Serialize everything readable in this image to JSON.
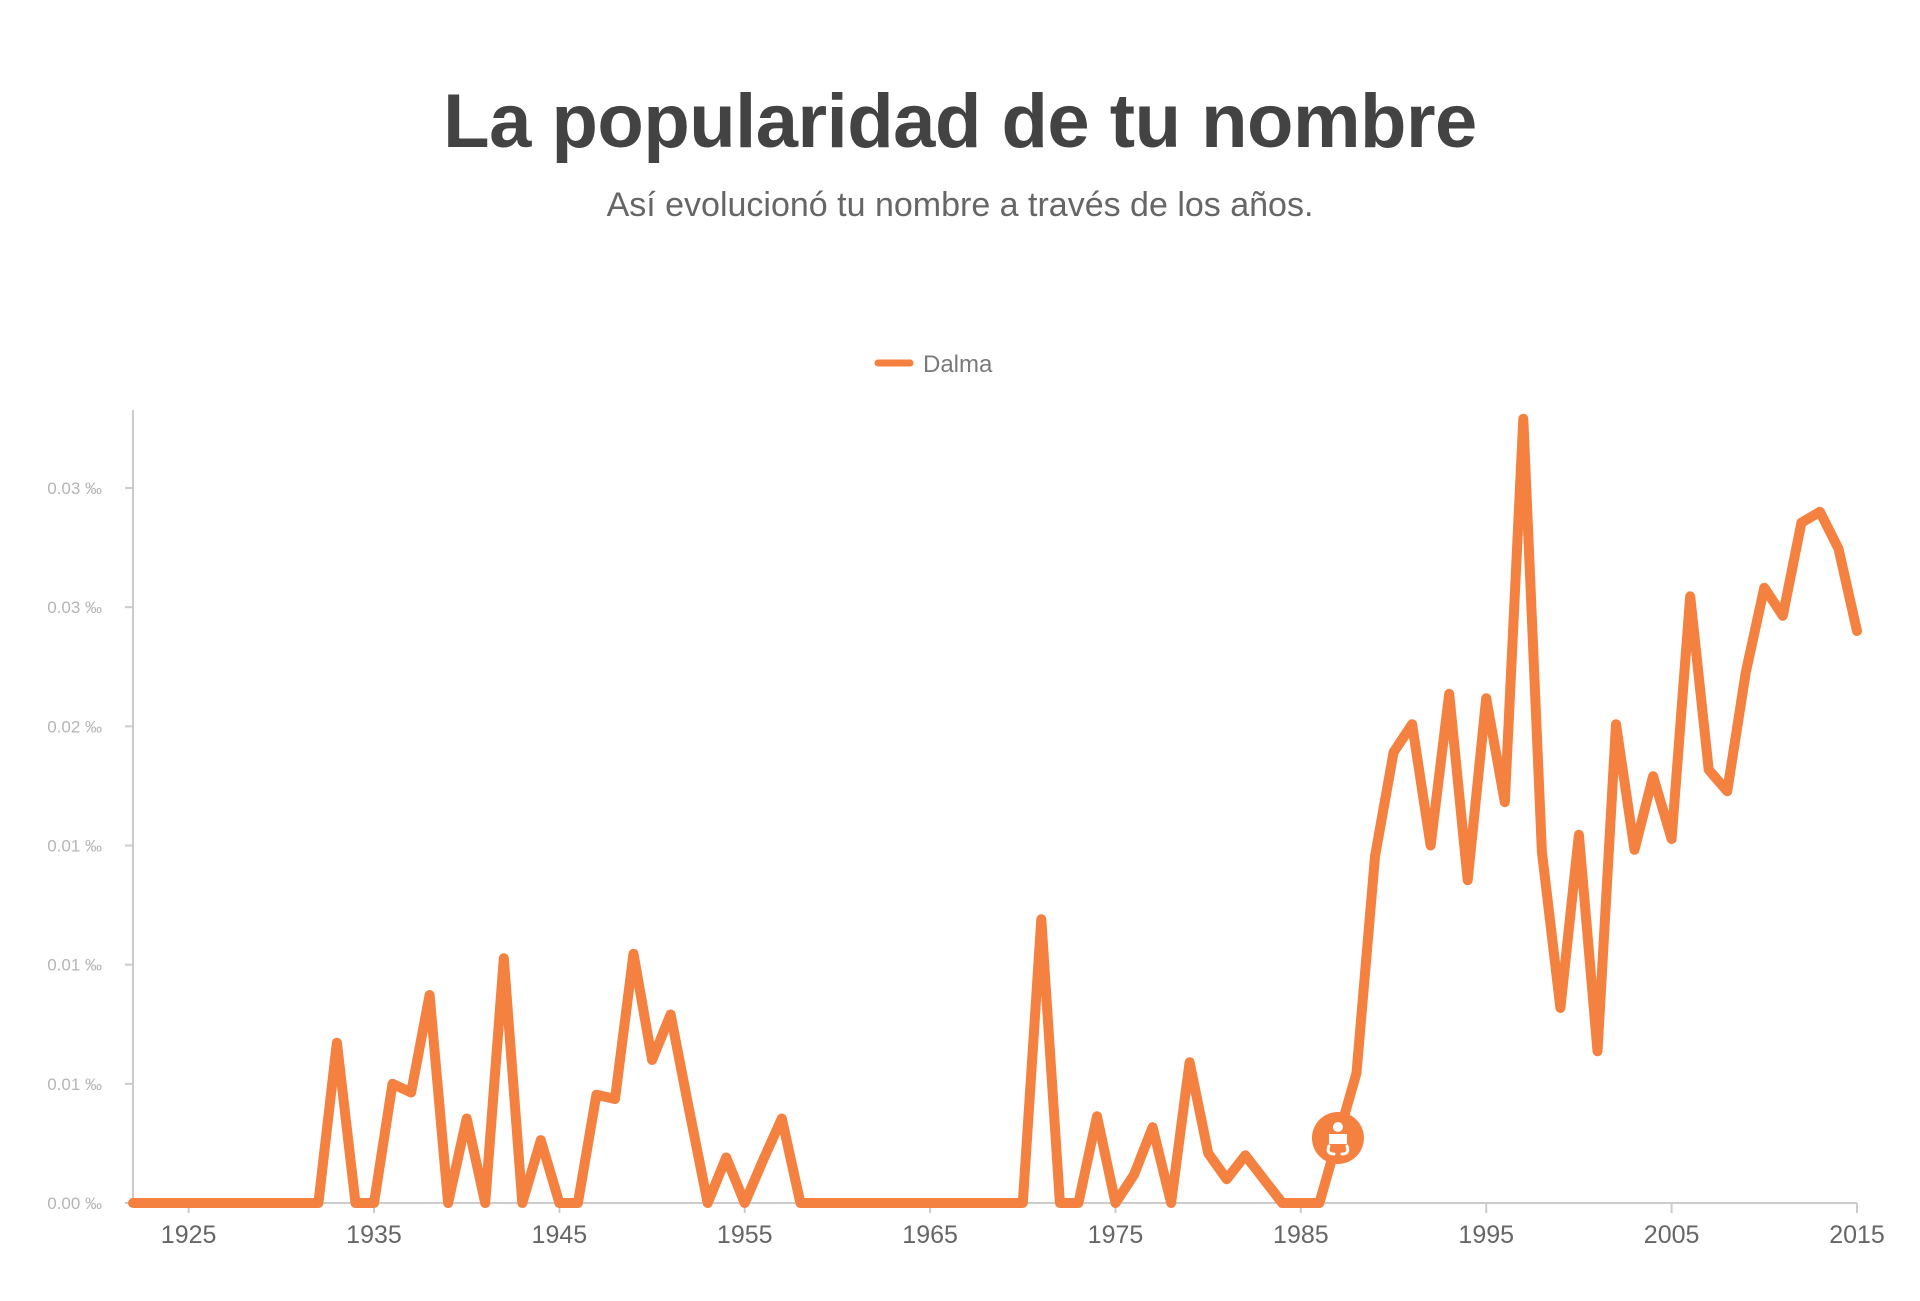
{
  "header": {
    "title": "La popularidad de tu nombre",
    "subtitle": "Así evolucionó tu nombre a través de los años."
  },
  "colors": {
    "series": "#f4813f",
    "axis": "#cccccc",
    "title": "#434343"
  },
  "chart_data": {
    "type": "line",
    "title": "",
    "xlabel": "",
    "ylabel": "",
    "xlim": [
      1922,
      2015
    ],
    "ylim": [
      0,
      0.0366
    ],
    "grid": false,
    "legend": "top-center",
    "y_ticks": [
      {
        "value": 0.0,
        "label": "0.00 ‰"
      },
      {
        "value": 0.0055,
        "label": "0.01 ‰"
      },
      {
        "value": 0.011,
        "label": "0.01 ‰"
      },
      {
        "value": 0.0165,
        "label": "0.01 ‰"
      },
      {
        "value": 0.022,
        "label": "0.02 ‰"
      },
      {
        "value": 0.0275,
        "label": "0.03 ‰"
      },
      {
        "value": 0.033,
        "label": "0.03 ‰"
      }
    ],
    "x_ticks": [
      1925,
      1935,
      1945,
      1955,
      1965,
      1975,
      1985,
      1995,
      2005,
      2015
    ],
    "marker": {
      "year": 1987,
      "value": 0.003,
      "icon": "baby-icon"
    },
    "series": [
      {
        "name": "Dalma",
        "x": [
          1922,
          1923,
          1924,
          1925,
          1926,
          1927,
          1928,
          1929,
          1930,
          1931,
          1932,
          1933,
          1934,
          1935,
          1936,
          1937,
          1938,
          1939,
          1940,
          1941,
          1942,
          1943,
          1944,
          1945,
          1946,
          1947,
          1948,
          1949,
          1950,
          1951,
          1952,
          1953,
          1954,
          1955,
          1956,
          1957,
          1958,
          1959,
          1960,
          1961,
          1962,
          1963,
          1964,
          1965,
          1966,
          1967,
          1968,
          1969,
          1970,
          1971,
          1972,
          1973,
          1974,
          1975,
          1976,
          1977,
          1978,
          1979,
          1980,
          1981,
          1982,
          1983,
          1984,
          1985,
          1986,
          1987,
          1988,
          1989,
          1990,
          1991,
          1992,
          1993,
          1994,
          1995,
          1996,
          1997,
          1998,
          1999,
          2000,
          2001,
          2002,
          2003,
          2004,
          2005,
          2006,
          2007,
          2008,
          2009,
          2010,
          2011,
          2012,
          2013,
          2014,
          2015
        ],
        "values": [
          0,
          0,
          0,
          0,
          0,
          0,
          0,
          0,
          0,
          0,
          0,
          0.0074,
          0,
          0,
          0.0055,
          0.0051,
          0.0096,
          0,
          0.0039,
          0,
          0.0113,
          0,
          0.0029,
          0,
          0,
          0.005,
          0.0048,
          0.0115,
          0.0066,
          0.0087,
          0.0043,
          0,
          0.0021,
          0,
          0.002,
          0.0039,
          0,
          0,
          0,
          0,
          0,
          0,
          0,
          0,
          0,
          0,
          0,
          0,
          0,
          0.0131,
          0,
          0,
          0.004,
          0,
          0.0013,
          0.0035,
          0,
          0.0065,
          0.0023,
          0.0011,
          0.0022,
          0.0011,
          0,
          0,
          0,
          0.003,
          0.006,
          0.016,
          0.0208,
          0.0221,
          0.0165,
          0.0235,
          0.0149,
          0.0233,
          0.0185,
          0.0362,
          0.0162,
          0.009,
          0.017,
          0.007,
          0.0221,
          0.0163,
          0.0197,
          0.0168,
          0.028,
          0.02,
          0.019,
          0.0245,
          0.0284,
          0.0271,
          0.0314,
          0.0319,
          0.0302,
          0.0264
        ]
      }
    ]
  }
}
